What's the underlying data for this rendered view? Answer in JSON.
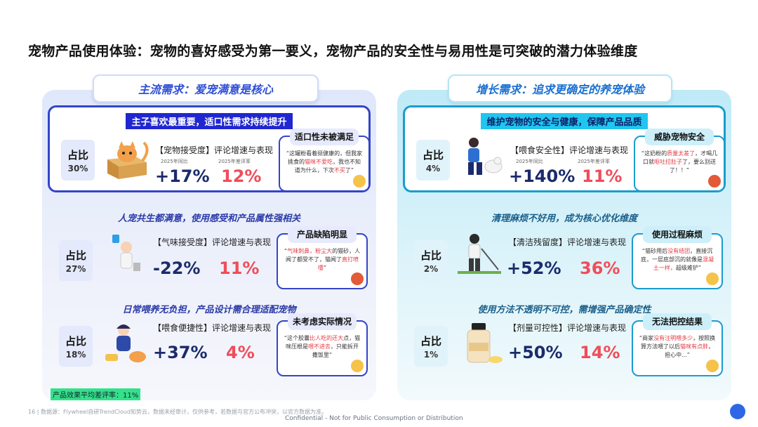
{
  "title": "宠物产品使用体验：宠物的喜好感受为第一要义，宠物产品的安全性与易用性是可突破的潜力体验维度",
  "left": {
    "header": "主流需求：爱宠满意是核心",
    "cards": [
      {
        "band": "主子喜欢最重要，适口性需求持续提升",
        "share_label": "占比",
        "share": "30%",
        "metric": "【宠物接受度】评论增速与表现",
        "sub1": "2025年同比",
        "sub2": "2025年差评率",
        "growth": "+17%",
        "neg": "12%",
        "bubble_title": "适口性未被满足",
        "quote_pre": "“这罐粉看着挺健康的，但我家挑食的",
        "quote_red": "猫咪不爱吃",
        "quote_post": "，我也不知道为什么，下次",
        "quote_red2": "不买",
        "quote_end": "了”"
      },
      {
        "band": "人宠共生都满意，使用感受和产品属性强相关",
        "share_label": "占比",
        "share": "27%",
        "metric": "【气味接受度】评论增速与表现",
        "growth": "-22%",
        "neg": "11%",
        "bubble_title": "产品缺陷明显",
        "quote_pre": "“",
        "quote_red": "气味刺鼻，粉尘大",
        "quote_post": "的猫砂，人闻了都受不了，猫闻了",
        "quote_red2": "直打喷嚏",
        "quote_end": "”"
      },
      {
        "band": "日常喂养无负担，产品设计需合理适配宠物",
        "share_label": "占比",
        "share": "18%",
        "metric": "【喂食便捷性】评论增速与表现",
        "growth": "+37%",
        "neg": "4%",
        "bubble_title": "未考虑实际情况",
        "quote_pre": "“这个胶囊",
        "quote_red": "比人吃的还大",
        "quote_post": "点，猫咪压根是",
        "quote_red2": "喂不进去",
        "quote_end": "，只能拆开撒饭里”"
      }
    ]
  },
  "right": {
    "header": "增长需求：追求更确定的养宠体验",
    "cards": [
      {
        "band": "维护宠物的安全与健康，保障产品品质",
        "share_label": "占比",
        "share": "4%",
        "metric": "【喂食安全性】评论增速与表现",
        "sub1": "2025年同比",
        "sub2": "2025年差评率",
        "growth": "+140%",
        "neg": "11%",
        "bubble_title": "威胁宠物安全",
        "quote_pre": "“这奶粉的",
        "quote_red": "质量太差了",
        "quote_post": "，才喝几口就",
        "quote_red2": "呕吐拉肚子",
        "quote_end": "了，要么别送了！！”"
      },
      {
        "band": "清理麻烦不好用，成为核心优化维度",
        "share_label": "占比",
        "share": "2%",
        "metric": "【清洁残留度】评论增速与表现",
        "growth": "+52%",
        "neg": "36%",
        "bubble_title": "使用过程麻烦",
        "quote_pre": "“猫砂用后",
        "quote_red": "没有结团",
        "quote_post": "，直接沉底，一层底部沉的就像是",
        "quote_red2": "混凝土一样，",
        "quote_end": "超级难铲”"
      },
      {
        "band": "使用方法不透明不可控，需增强产品确定性",
        "share_label": "占比",
        "share": "1%",
        "metric": "【剂量可控性】评论增速与表现",
        "growth": "+50%",
        "neg": "14%",
        "bubble_title": "无法把控结果",
        "quote_pre": "“商家",
        "quote_red": "没有注明喂多少",
        "quote_post": "，按照换算方法喂了以后",
        "quote_red2": "猫咪有点胖",
        "quote_end": "，担心中...”"
      }
    ]
  },
  "footer_badge": "产品效果平均差评率：11%",
  "source": "16 | 数据源：Flywheel自研TrendCloud知势云，数据未经审计，仅供参考，若数据与官方公布冲突，以官方数据为准。",
  "confidential": "Confidential - Not for Public Consumption or Distribution"
}
